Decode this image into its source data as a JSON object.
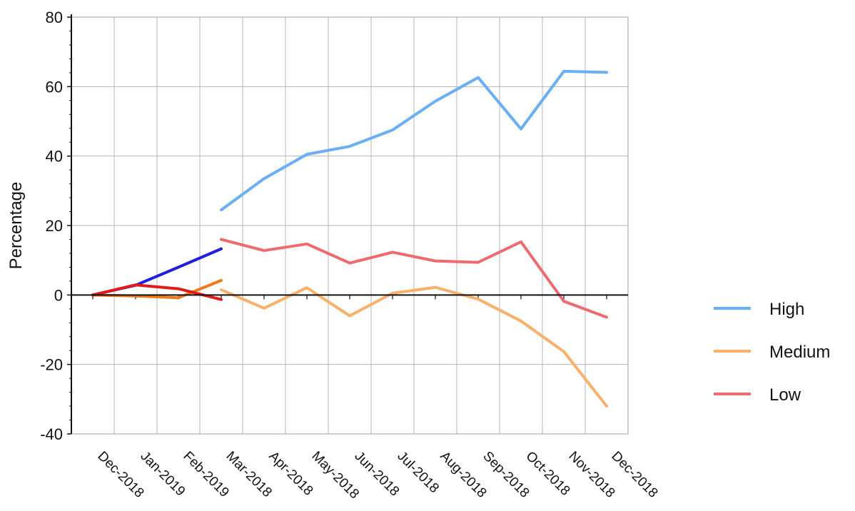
{
  "chart_data": {
    "type": "line",
    "ylabel": "Percentage",
    "xlabel": "",
    "ylim": [
      -40,
      80
    ],
    "yticks": [
      80,
      60,
      40,
      20,
      0,
      -20,
      -40
    ],
    "grid": true,
    "legend_position": "right",
    "categories": [
      "Dec-2018",
      "Jan-2019",
      "Feb-2019",
      "Mar-2018",
      "Apr-2018",
      "May-2018",
      "Jun-2018",
      "Jul-2018",
      "Aug-2018",
      "Sep-2018",
      "Oct-2018",
      "Nov-2018",
      "Dec-2018"
    ],
    "series": [
      {
        "name": "High",
        "color": "#6aaef5",
        "x": [
          3,
          4,
          5,
          6,
          7,
          8,
          9,
          10,
          11,
          12
        ],
        "values": [
          24.5,
          33.5,
          40.5,
          42.8,
          47.5,
          55.8,
          62.6,
          47.8,
          64.4,
          64.1
        ]
      },
      {
        "name": "Medium",
        "color": "#f8b06a",
        "x": [
          3,
          4,
          5,
          6,
          7,
          8,
          9,
          10,
          11,
          12
        ],
        "values": [
          1.5,
          -3.8,
          2.1,
          -6.0,
          0.5,
          2.2,
          -1.2,
          -7.5,
          -16.3,
          -32.0
        ]
      },
      {
        "name": "Low",
        "color": "#ee6a6e",
        "x": [
          3,
          4,
          5,
          6,
          7,
          8,
          9,
          10,
          11,
          12
        ],
        "values": [
          16.0,
          12.8,
          14.7,
          9.2,
          12.3,
          9.8,
          9.4,
          15.3,
          -1.8,
          -6.4
        ]
      },
      {
        "color": "#1f1fdd",
        "x": [
          0,
          1,
          2,
          3
        ],
        "values": [
          0,
          2.8,
          8.0,
          13.3
        ]
      },
      {
        "color": "#f07a1a",
        "x": [
          0,
          1,
          2,
          3
        ],
        "values": [
          0,
          -0.3,
          -0.8,
          4.2
        ]
      },
      {
        "color": "#e11a1a",
        "x": [
          0,
          1,
          2,
          3
        ],
        "values": [
          0,
          2.9,
          1.8,
          -1.3
        ]
      }
    ]
  }
}
